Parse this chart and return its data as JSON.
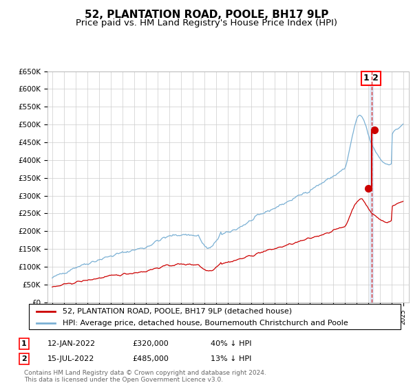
{
  "title": "52, PLANTATION ROAD, POOLE, BH17 9LP",
  "subtitle": "Price paid vs. HM Land Registry's House Price Index (HPI)",
  "ylim": [
    0,
    650000
  ],
  "yticks": [
    0,
    50000,
    100000,
    150000,
    200000,
    250000,
    300000,
    350000,
    400000,
    450000,
    500000,
    550000,
    600000,
    650000
  ],
  "ytick_labels": [
    "£0",
    "£50K",
    "£100K",
    "£150K",
    "£200K",
    "£250K",
    "£300K",
    "£350K",
    "£400K",
    "£450K",
    "£500K",
    "£550K",
    "£600K",
    "£650K"
  ],
  "hpi_color": "#7ab0d4",
  "property_color": "#cc0000",
  "marker_color": "#cc0000",
  "vline_color": "#cc0000",
  "transaction1_date_num": 2022.04,
  "transaction1_price": 320000,
  "transaction2_date_num": 2022.54,
  "transaction2_price": 485000,
  "legend_property": "52, PLANTATION ROAD, POOLE, BH17 9LP (detached house)",
  "legend_hpi": "HPI: Average price, detached house, Bournemouth Christchurch and Poole",
  "table_rows": [
    [
      "1",
      "12-JAN-2022",
      "£320,000",
      "40% ↓ HPI"
    ],
    [
      "2",
      "15-JUL-2022",
      "£485,000",
      "13% ↓ HPI"
    ]
  ],
  "footnote": "Contains HM Land Registry data © Crown copyright and database right 2024.\nThis data is licensed under the Open Government Licence v3.0.",
  "bg_color": "#ffffff",
  "grid_color": "#cccccc"
}
